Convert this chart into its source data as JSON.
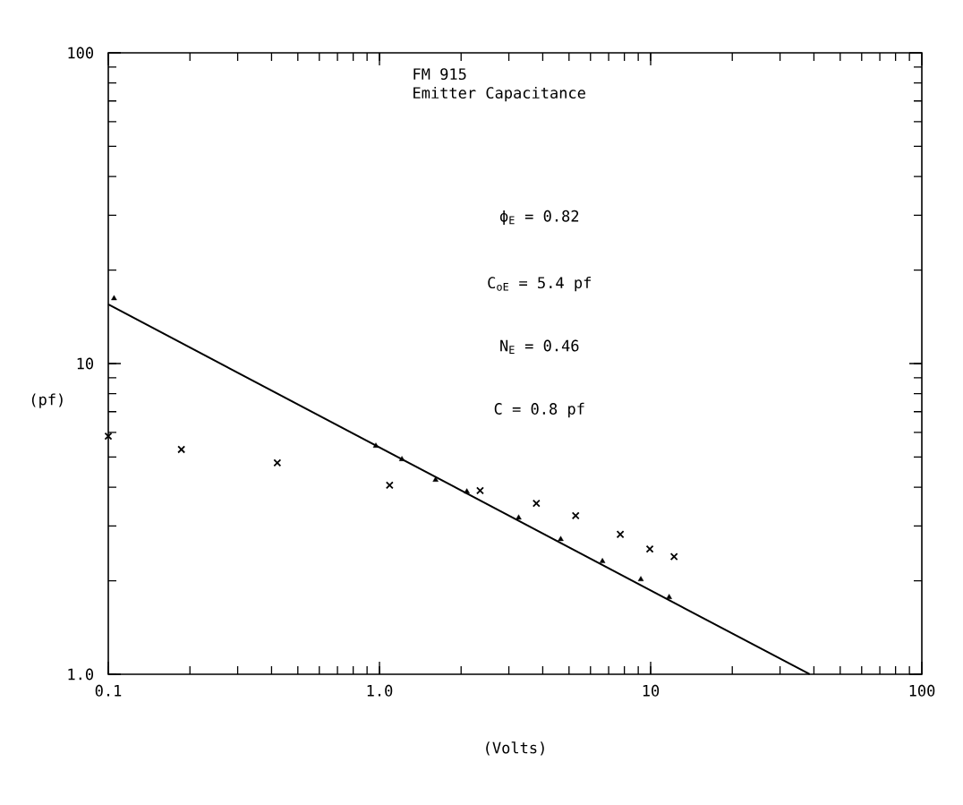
{
  "chart_data": {
    "type": "scatter",
    "title": "FM 915",
    "subtitle": "Emitter Capacitance",
    "xlabel": "(Volts)",
    "ylabel": "(pf)",
    "log": "xy",
    "grid": false,
    "xlim": [
      0.1,
      100
    ],
    "ylim": [
      1,
      100
    ],
    "xticks": [
      0.1,
      {
        "value": 1,
        "label": "1.0"
      },
      10,
      100
    ],
    "yticks": [
      {
        "value": 1,
        "label": "1.0"
      },
      10,
      100
    ],
    "annotations": [
      "ϕ$_{E}$ = 0.82",
      "C$_{oE}$ = 5.4 pf",
      "N$_{E}$ = 0.46",
      "C  = 0.8 pf"
    ],
    "series": [
      {
        "color": "#000000",
        "marker": "triangle",
        "x": [
          0.105,
          0.97,
          1.21,
          1.61,
          2.1,
          3.26,
          4.66,
          6.64,
          9.2,
          11.7
        ],
        "values": [
          16.2,
          5.43,
          4.92,
          4.22,
          3.87,
          3.19,
          2.72,
          2.31,
          2.02,
          1.77
        ]
      },
      {
        "color": "#000000",
        "marker": "cross",
        "x": [
          0.1,
          0.186,
          0.42,
          1.09,
          2.35,
          3.79,
          5.29,
          7.73,
          9.93,
          12.2
        ],
        "values": [
          5.84,
          5.29,
          4.79,
          4.06,
          3.9,
          3.55,
          3.24,
          2.82,
          2.53,
          2.39
        ]
      },
      {
        "type": "line",
        "color": "#000000",
        "marker": "none",
        "line_style": "solid",
        "x": [
          0.1,
          38.6
        ],
        "values": [
          15.5,
          1.0
        ]
      }
    ]
  }
}
